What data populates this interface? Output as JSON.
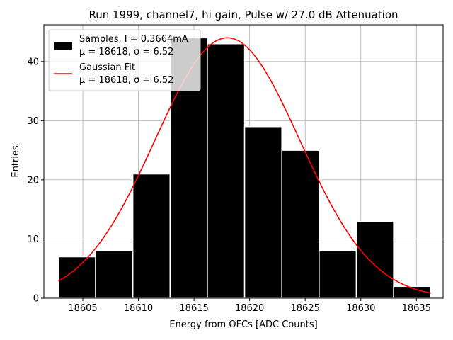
{
  "chart_data": {
    "type": "bar",
    "title": "Run 1999, channel7, hi gain, Pulse w/ 27.0 dB Attenuation",
    "xlabel": "Energy from OFCs [ADC Counts]",
    "ylabel": "Entries",
    "xlim": [
      18601.5,
      18637.4
    ],
    "ylim": [
      0,
      46.2
    ],
    "xticks": [
      18605,
      18610,
      18615,
      18620,
      18625,
      18630,
      18635
    ],
    "yticks": [
      0,
      10,
      20,
      30,
      40
    ],
    "grid": true,
    "legend_position": "top-left",
    "histogram": {
      "name": "Samples, I = 0.3664mA",
      "stats_label": "μ = 18618, σ = 6.52",
      "color": "#000000",
      "edge_color": "#ffffff",
      "bin_edges": [
        18602.8,
        18606.15,
        18609.5,
        18612.85,
        18616.2,
        18619.55,
        18622.9,
        18626.25,
        18629.6,
        18632.95,
        18636.3
      ],
      "counts": [
        7,
        8,
        21,
        44,
        43,
        29,
        25,
        8,
        13,
        2
      ]
    },
    "fit": {
      "name": "Gaussian Fit",
      "stats_label": "μ = 18618, σ = 6.52",
      "color": "#ff0000",
      "mu": 18618.0,
      "sigma": 6.52,
      "amplitude": 44.0,
      "x_range": [
        18602.8,
        18636.3
      ]
    }
  }
}
